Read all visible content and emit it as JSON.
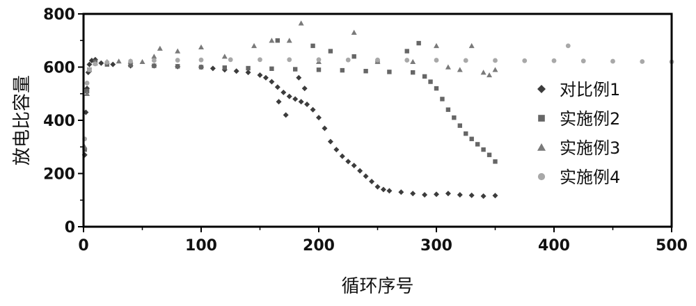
{
  "chart_data": {
    "type": "scatter",
    "xlabel": "循环序号",
    "ylabel": "放电比容量",
    "xlim": [
      0,
      500
    ],
    "ylim": [
      0,
      800
    ],
    "xticks": [
      "0",
      "100",
      "200",
      "300",
      "400",
      "500"
    ],
    "yticks": [
      "0",
      "200",
      "400",
      "600",
      "800"
    ],
    "legend_position": "right",
    "grid": false,
    "series": [
      {
        "name": "对比例1",
        "marker": "diamond",
        "color": "#3c3c3c",
        "points": [
          [
            1,
            270
          ],
          [
            2,
            430
          ],
          [
            3,
            520
          ],
          [
            4,
            580
          ],
          [
            5,
            610
          ],
          [
            7,
            625
          ],
          [
            10,
            628
          ],
          [
            15,
            615
          ],
          [
            25,
            610
          ],
          [
            40,
            605
          ],
          [
            60,
            605
          ],
          [
            80,
            602
          ],
          [
            100,
            600
          ],
          [
            110,
            595
          ],
          [
            120,
            590
          ],
          [
            130,
            585
          ],
          [
            140,
            580
          ],
          [
            150,
            570
          ],
          [
            155,
            560
          ],
          [
            160,
            545
          ],
          [
            165,
            525
          ],
          [
            170,
            505
          ],
          [
            175,
            490
          ],
          [
            180,
            480
          ],
          [
            185,
            470
          ],
          [
            190,
            460
          ],
          [
            195,
            440
          ],
          [
            200,
            410
          ],
          [
            205,
            370
          ],
          [
            210,
            320
          ],
          [
            215,
            290
          ],
          [
            220,
            265
          ],
          [
            225,
            245
          ],
          [
            230,
            230
          ],
          [
            235,
            210
          ],
          [
            240,
            190
          ],
          [
            245,
            170
          ],
          [
            250,
            150
          ],
          [
            255,
            140
          ],
          [
            260,
            135
          ],
          [
            270,
            130
          ],
          [
            280,
            125
          ],
          [
            290,
            120
          ],
          [
            300,
            122
          ],
          [
            310,
            125
          ],
          [
            320,
            120
          ],
          [
            330,
            118
          ],
          [
            340,
            115
          ],
          [
            350,
            117
          ],
          [
            172,
            420
          ],
          [
            183,
            560
          ],
          [
            188,
            520
          ],
          [
            166,
            470
          ]
        ]
      },
      {
        "name": "实施例2",
        "marker": "square",
        "color": "#666666",
        "points": [
          [
            1,
            290
          ],
          [
            3,
            510
          ],
          [
            5,
            590
          ],
          [
            10,
            620
          ],
          [
            20,
            610
          ],
          [
            40,
            608
          ],
          [
            60,
            605
          ],
          [
            80,
            603
          ],
          [
            100,
            600
          ],
          [
            120,
            598
          ],
          [
            140,
            596
          ],
          [
            160,
            594
          ],
          [
            180,
            592
          ],
          [
            200,
            590
          ],
          [
            220,
            588
          ],
          [
            240,
            585
          ],
          [
            260,
            582
          ],
          [
            280,
            580
          ],
          [
            290,
            565
          ],
          [
            295,
            545
          ],
          [
            300,
            520
          ],
          [
            305,
            480
          ],
          [
            310,
            440
          ],
          [
            315,
            410
          ],
          [
            320,
            380
          ],
          [
            325,
            350
          ],
          [
            330,
            330
          ],
          [
            335,
            310
          ],
          [
            340,
            290
          ],
          [
            345,
            270
          ],
          [
            350,
            245
          ],
          [
            165,
            700
          ],
          [
            195,
            680
          ],
          [
            230,
            640
          ],
          [
            250,
            620
          ],
          [
            275,
            660
          ],
          [
            210,
            660
          ],
          [
            285,
            690
          ]
        ]
      },
      {
        "name": "实施例3",
        "marker": "triangle",
        "color": "#7a7a7a",
        "points": [
          [
            1,
            300
          ],
          [
            3,
            500
          ],
          [
            5,
            590
          ],
          [
            10,
            615
          ],
          [
            20,
            620
          ],
          [
            30,
            622
          ],
          [
            40,
            622
          ],
          [
            50,
            620
          ],
          [
            60,
            640
          ],
          [
            65,
            670
          ],
          [
            80,
            660
          ],
          [
            100,
            675
          ],
          [
            120,
            640
          ],
          [
            145,
            680
          ],
          [
            160,
            700
          ],
          [
            175,
            700
          ],
          [
            185,
            765
          ],
          [
            200,
            620
          ],
          [
            230,
            730
          ],
          [
            250,
            620
          ],
          [
            280,
            620
          ],
          [
            300,
            680
          ],
          [
            310,
            600
          ],
          [
            320,
            590
          ],
          [
            330,
            680
          ],
          [
            340,
            580
          ],
          [
            345,
            570
          ],
          [
            350,
            590
          ]
        ]
      },
      {
        "name": "实施例4",
        "marker": "circle",
        "color": "#a8a8a8",
        "points": [
          [
            1,
            330
          ],
          [
            3,
            540
          ],
          [
            5,
            590
          ],
          [
            10,
            612
          ],
          [
            20,
            618
          ],
          [
            40,
            622
          ],
          [
            60,
            625
          ],
          [
            80,
            626
          ],
          [
            100,
            627
          ],
          [
            125,
            628
          ],
          [
            150,
            628
          ],
          [
            175,
            628
          ],
          [
            200,
            628
          ],
          [
            225,
            627
          ],
          [
            250,
            627
          ],
          [
            275,
            626
          ],
          [
            300,
            626
          ],
          [
            325,
            625
          ],
          [
            350,
            625
          ],
          [
            375,
            624
          ],
          [
            400,
            624
          ],
          [
            412,
            680
          ],
          [
            425,
            623
          ],
          [
            450,
            622
          ],
          [
            475,
            621
          ],
          [
            500,
            620
          ]
        ]
      }
    ]
  }
}
